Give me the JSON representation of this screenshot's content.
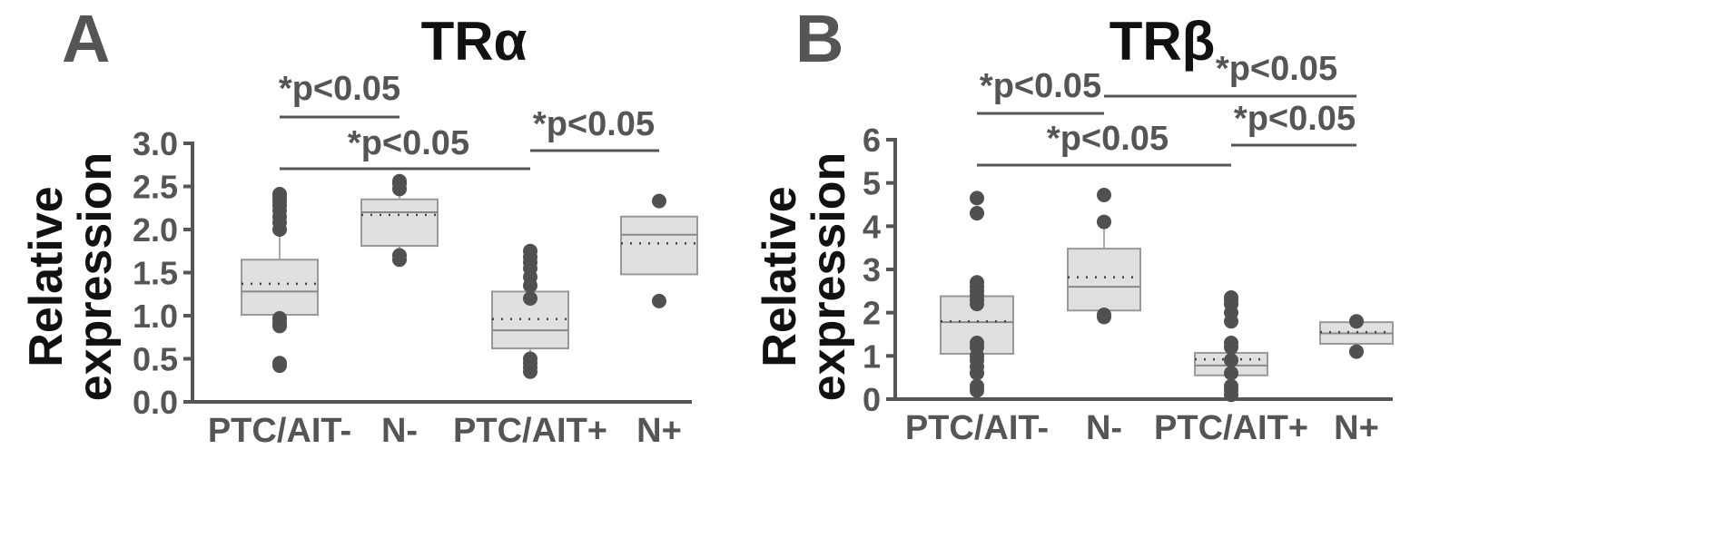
{
  "chart_data": [
    {
      "type": "box",
      "panel": "A",
      "title": "TRα",
      "ylabel": "Relative expression",
      "xlabel": "",
      "ylim": [
        0,
        3
      ],
      "yticks": [
        "0.0",
        "0.5",
        "1.0",
        "1.5",
        "2.0",
        "2.5",
        "3.0"
      ],
      "categories": [
        "PTC/AIT-",
        "N-",
        "PTC/AIT+",
        "N+"
      ],
      "boxes": [
        {
          "category": "PTC/AIT-",
          "q1": 1.01,
          "median": 1.28,
          "mean": 1.37,
          "q3": 1.65,
          "whisker_low": 0.95,
          "whisker_high": 1.97,
          "outliers": [
            0.42,
            0.45,
            0.88,
            0.92,
            0.97,
            2.0,
            2.08,
            2.15,
            2.22,
            2.28,
            2.33,
            2.37,
            2.41
          ]
        },
        {
          "category": "N-",
          "q1": 1.81,
          "median": 2.2,
          "mean": 2.17,
          "q3": 2.35,
          "whisker_low": 1.74,
          "whisker_high": 2.4,
          "outliers": [
            1.65,
            1.7,
            2.47,
            2.53,
            2.56
          ]
        },
        {
          "category": "PTC/AIT+",
          "q1": 0.62,
          "median": 0.83,
          "mean": 0.96,
          "q3": 1.28,
          "whisker_low": 0.5,
          "whisker_high": 1.42,
          "outliers": [
            0.35,
            0.4,
            0.45,
            0.5,
            1.2,
            1.35,
            1.45,
            1.55,
            1.62,
            1.68,
            1.75
          ]
        },
        {
          "category": "N+",
          "q1": 1.48,
          "median": 1.94,
          "mean": 1.84,
          "q3": 2.15,
          "whisker_low": 1.48,
          "whisker_high": 2.15,
          "outliers": [
            1.17,
            2.33
          ]
        }
      ],
      "significance": [
        {
          "label": "*p<0.05",
          "from": "PTC/AIT-",
          "to": "N-"
        },
        {
          "label": "*p<0.05",
          "from": "PTC/AIT-",
          "to": "PTC/AIT+"
        },
        {
          "label": "*p<0.05",
          "from": "PTC/AIT+",
          "to": "N+"
        }
      ]
    },
    {
      "type": "box",
      "panel": "B",
      "title": "TRβ",
      "ylabel": "Relative expression",
      "xlabel": "",
      "ylim": [
        0,
        6
      ],
      "yticks": [
        "0",
        "1",
        "2",
        "3",
        "4",
        "5",
        "6"
      ],
      "categories": [
        "PTC/AIT-",
        "N-",
        "PTC/AIT+",
        "N+"
      ],
      "boxes": [
        {
          "category": "PTC/AIT-",
          "q1": 1.05,
          "median": 1.78,
          "mean": 1.8,
          "q3": 2.38,
          "whisker_low": 0.5,
          "whisker_high": 2.6,
          "outliers": [
            0.2,
            0.3,
            0.6,
            0.75,
            0.9,
            1.0,
            1.2,
            1.3,
            2.2,
            2.3,
            2.4,
            2.5,
            2.6,
            2.7,
            4.3,
            4.65
          ]
        },
        {
          "category": "N-",
          "q1": 2.05,
          "median": 2.6,
          "mean": 2.82,
          "q3": 3.48,
          "whisker_low": 2.0,
          "whisker_high": 4.0,
          "outliers": [
            1.9,
            1.95,
            4.1,
            4.72
          ]
        },
        {
          "category": "PTC/AIT+",
          "q1": 0.55,
          "median": 0.78,
          "mean": 0.92,
          "q3": 1.07,
          "whisker_low": 0.3,
          "whisker_high": 1.3,
          "outliers": [
            0.1,
            0.2,
            0.3,
            0.6,
            0.9,
            1.2,
            1.3,
            1.8,
            2.0,
            2.2,
            2.3,
            2.35
          ]
        },
        {
          "category": "N+",
          "q1": 1.28,
          "median": 1.52,
          "mean": 1.55,
          "q3": 1.78,
          "whisker_low": 1.28,
          "whisker_high": 1.78,
          "outliers": [
            1.1,
            1.8
          ]
        }
      ],
      "significance": [
        {
          "label": "*p<0.05",
          "from": "PTC/AIT-",
          "to": "N-"
        },
        {
          "label": "*p<0.05",
          "from": "N-",
          "to": "N+"
        },
        {
          "label": "*p<0.05",
          "from": "PTC/AIT-",
          "to": "PTC/AIT+"
        },
        {
          "label": "*p<0.05",
          "from": "PTC/AIT+",
          "to": "N+"
        }
      ]
    }
  ]
}
